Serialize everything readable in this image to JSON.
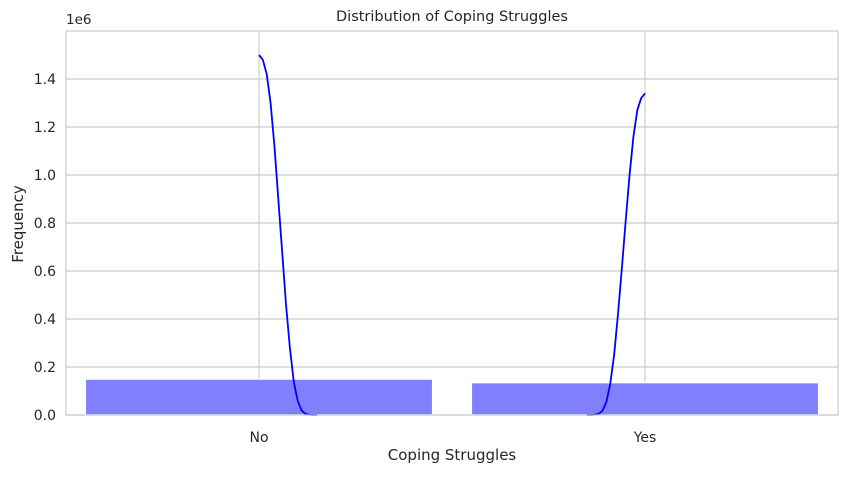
{
  "chart_data": {
    "type": "bar",
    "title": "Distribution of Coping Struggles",
    "xlabel": "Coping Struggles",
    "ylabel": "Frequency",
    "y_offset_label": "1e6",
    "categories": [
      "No",
      "Yes"
    ],
    "series": [
      {
        "kind": "histogram",
        "values": [
          150000,
          135000
        ],
        "color": "#8080FF"
      },
      {
        "kind": "kde",
        "color": "#0000FF",
        "points": [
          {
            "x": 0.0,
            "y": 1500000
          },
          {
            "x": 0.01,
            "y": 1480000
          },
          {
            "x": 0.02,
            "y": 1420000
          },
          {
            "x": 0.03,
            "y": 1300000
          },
          {
            "x": 0.04,
            "y": 1120000
          },
          {
            "x": 0.05,
            "y": 900000
          },
          {
            "x": 0.06,
            "y": 680000
          },
          {
            "x": 0.07,
            "y": 460000
          },
          {
            "x": 0.08,
            "y": 280000
          },
          {
            "x": 0.09,
            "y": 140000
          },
          {
            "x": 0.1,
            "y": 60000
          },
          {
            "x": 0.11,
            "y": 20000
          },
          {
            "x": 0.12,
            "y": 5000
          },
          {
            "x": 0.13,
            "y": 1000
          },
          {
            "x": 0.15,
            "y": 0
          },
          {
            "x": 0.85,
            "y": 0
          },
          {
            "x": 0.87,
            "y": 1000
          },
          {
            "x": 0.88,
            "y": 5000
          },
          {
            "x": 0.89,
            "y": 18000
          },
          {
            "x": 0.9,
            "y": 55000
          },
          {
            "x": 0.91,
            "y": 130000
          },
          {
            "x": 0.92,
            "y": 250000
          },
          {
            "x": 0.93,
            "y": 420000
          },
          {
            "x": 0.94,
            "y": 610000
          },
          {
            "x": 0.95,
            "y": 810000
          },
          {
            "x": 0.96,
            "y": 1000000
          },
          {
            "x": 0.97,
            "y": 1160000
          },
          {
            "x": 0.98,
            "y": 1270000
          },
          {
            "x": 0.99,
            "y": 1320000
          },
          {
            "x": 1.0,
            "y": 1340000
          }
        ]
      }
    ],
    "xlim": [
      -0.5,
      1.5
    ],
    "ylim": [
      0,
      1600000
    ],
    "yticks": [
      0,
      200000,
      400000,
      600000,
      800000,
      1000000,
      1200000,
      1400000
    ],
    "ytick_labels": [
      "0.0",
      "0.2",
      "0.4",
      "0.6",
      "0.8",
      "1.0",
      "1.2",
      "1.4"
    ],
    "grid": true
  }
}
